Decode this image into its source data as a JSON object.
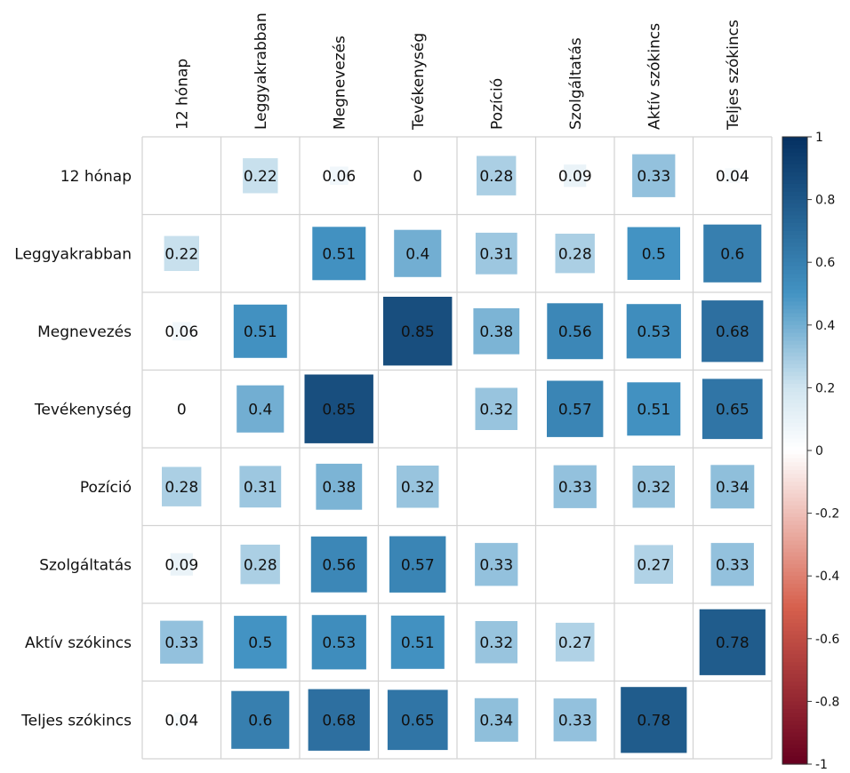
{
  "chart_data": {
    "type": "heatmap",
    "variables": [
      "12 hónap",
      "Leggyakrabban",
      "Megnevezés",
      "Tevékenység",
      "Pozíció",
      "Szolgáltatás",
      "Aktív szókincs",
      "Teljes szókincs"
    ],
    "matrix": [
      [
        null,
        0.22,
        0.06,
        0,
        0.28,
        0.09,
        0.33,
        0.04
      ],
      [
        0.22,
        null,
        0.51,
        0.4,
        0.31,
        0.28,
        0.5,
        0.6
      ],
      [
        0.06,
        0.51,
        null,
        0.85,
        0.38,
        0.56,
        0.53,
        0.68
      ],
      [
        0,
        0.4,
        0.85,
        null,
        0.32,
        0.57,
        0.51,
        0.65
      ],
      [
        0.28,
        0.31,
        0.38,
        0.32,
        null,
        0.33,
        0.32,
        0.34
      ],
      [
        0.09,
        0.28,
        0.56,
        0.57,
        0.33,
        null,
        0.27,
        0.33
      ],
      [
        0.33,
        0.5,
        0.53,
        0.51,
        0.32,
        0.27,
        null,
        0.78
      ],
      [
        0.04,
        0.6,
        0.68,
        0.65,
        0.34,
        0.33,
        0.78,
        null
      ]
    ],
    "value_range": [
      -1,
      1
    ],
    "colorbar_ticks": [
      "1",
      "0.8",
      "0.6",
      "0.4",
      "0.2",
      "0",
      "-0.2",
      "-0.4",
      "-0.6",
      "-0.8",
      "-1"
    ],
    "grid": true,
    "legend_position": "right",
    "colors": {
      "negative_end": "#67001F",
      "negative_mid": "#D6604D",
      "neutral": "#FFFFFF",
      "positive_mid": "#4393C3",
      "positive_end": "#053061"
    }
  }
}
